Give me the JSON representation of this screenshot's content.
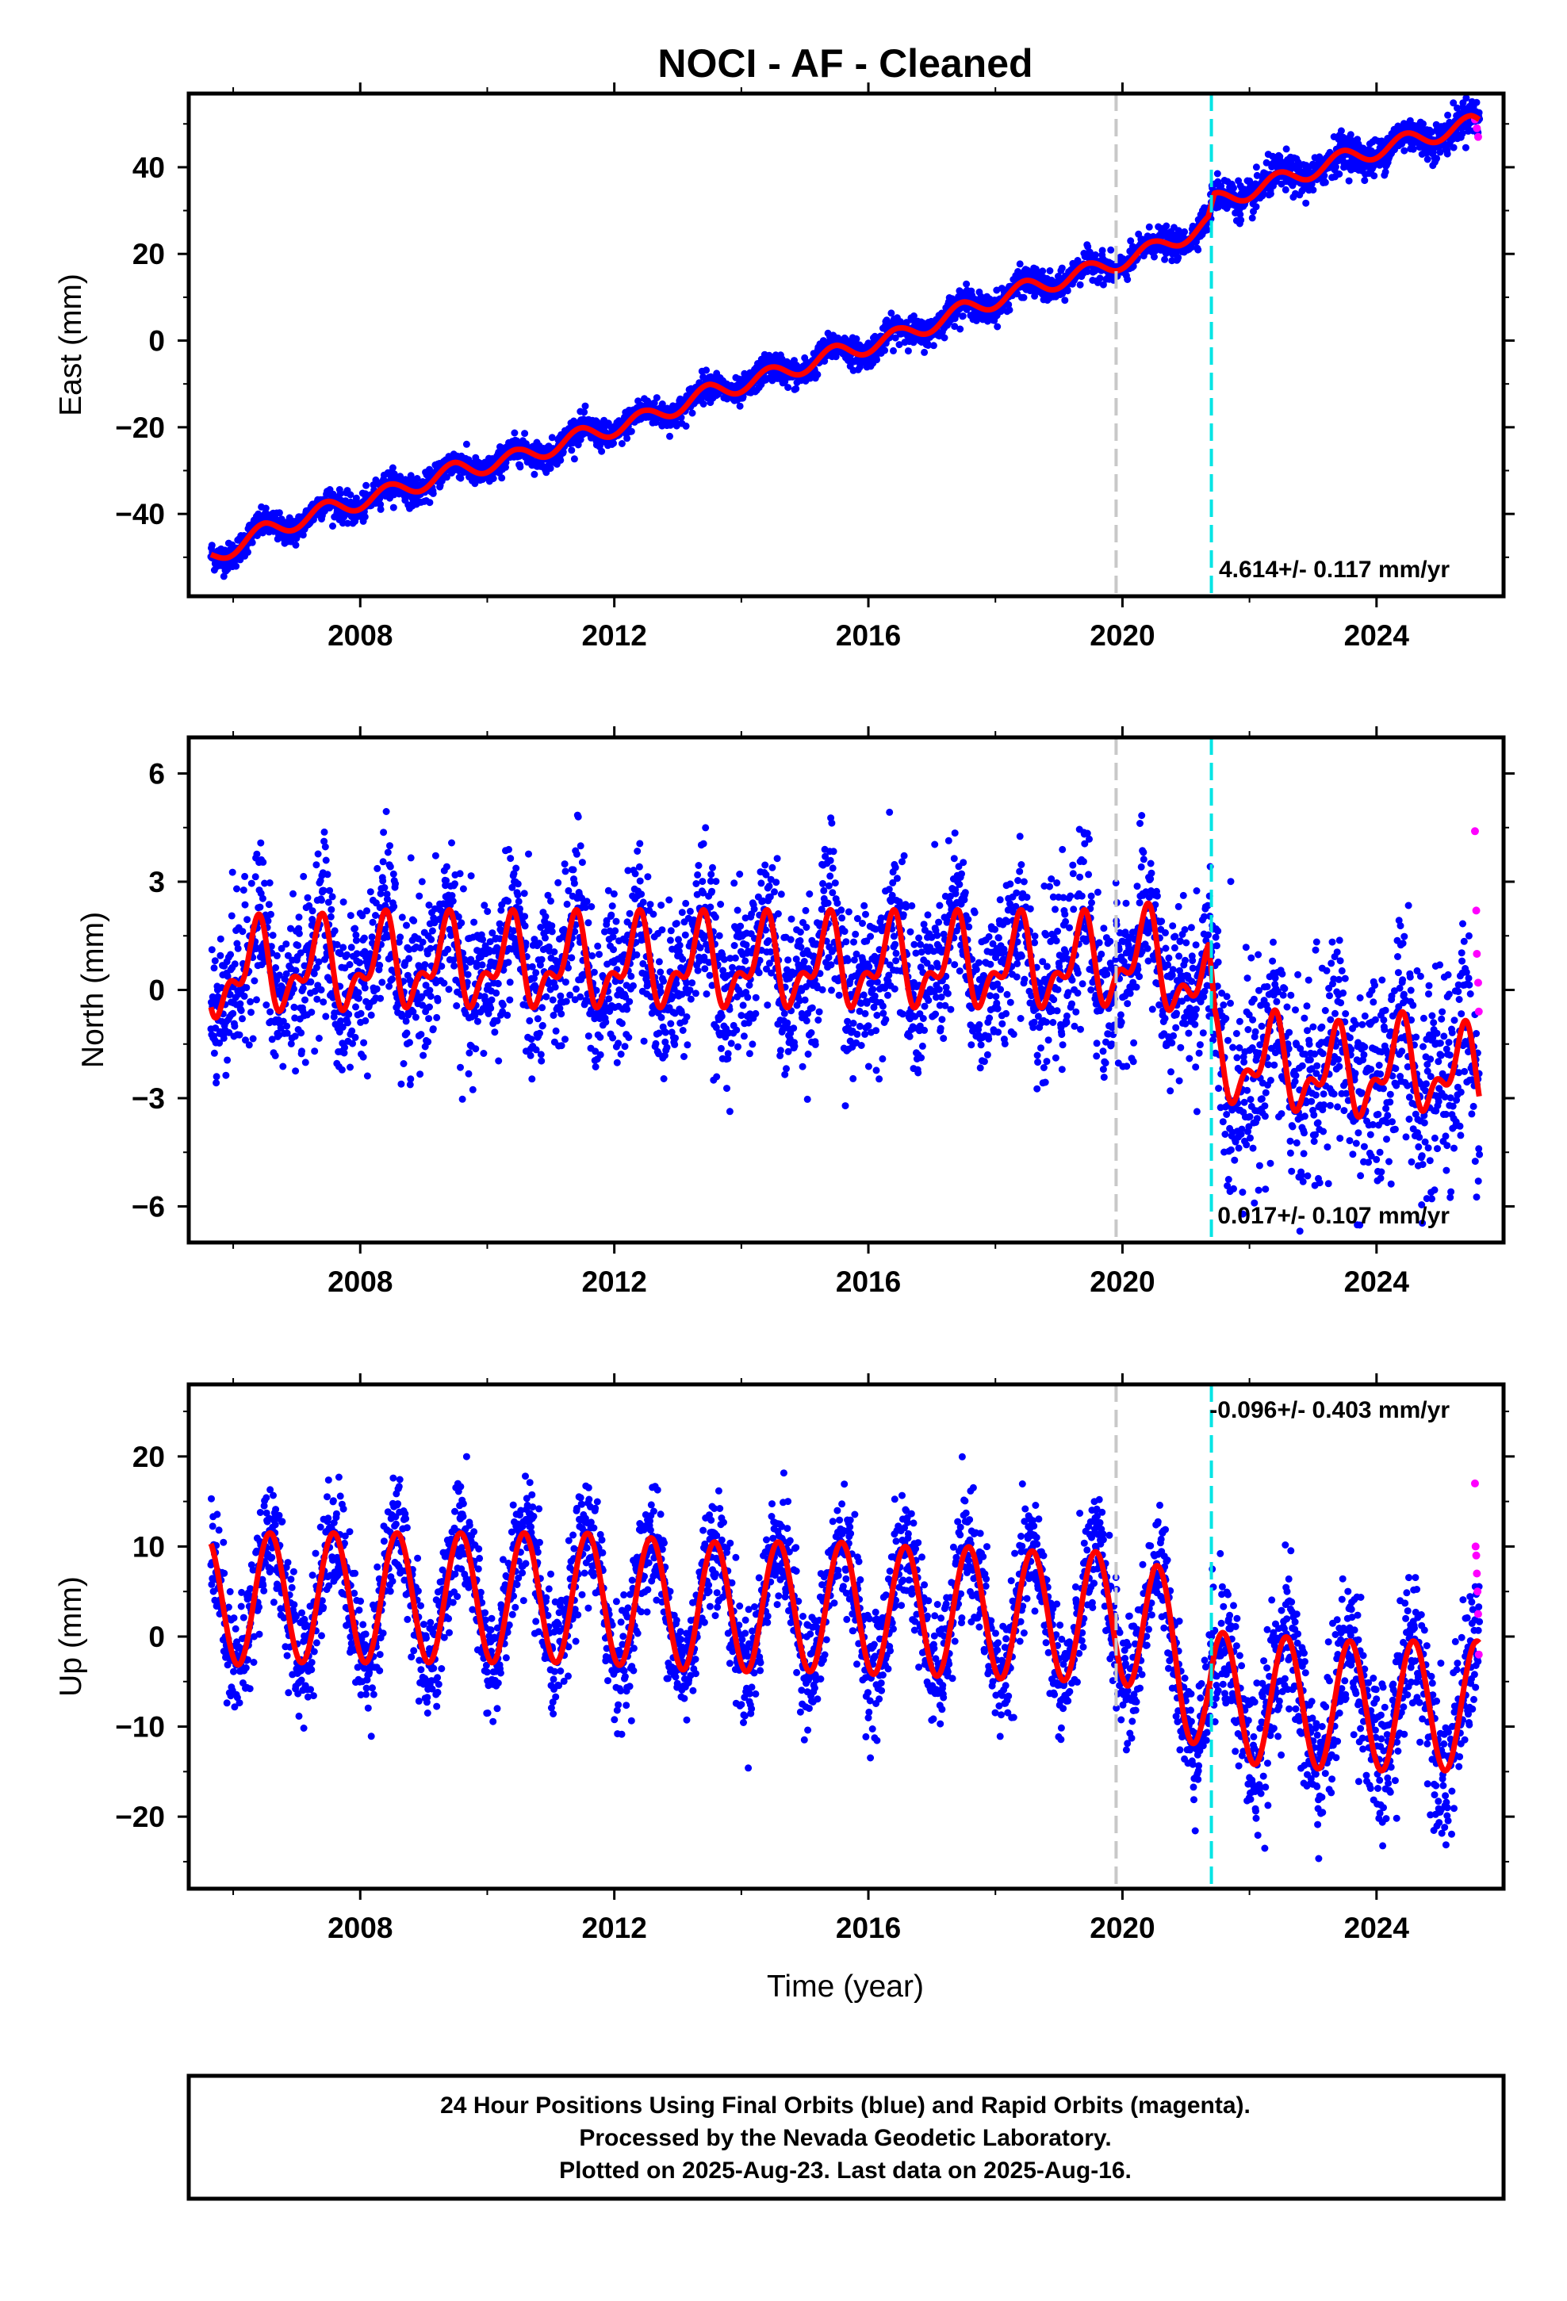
{
  "title": "NOCI  - AF - Cleaned",
  "colors": {
    "final_orbits": "#0000ff",
    "rapid_orbits": "#ff00ff",
    "model": "#ff0000",
    "equipment_change": "#c8c8c8",
    "earthquake": "#00e5e5"
  },
  "x_axis": {
    "label": "Time (year)",
    "range": [
      2005.3,
      2026.0
    ],
    "ticks": [
      2008,
      2012,
      2016,
      2020,
      2024
    ],
    "tick_labels": [
      "2008",
      "2012",
      "2016",
      "2020",
      "2024"
    ]
  },
  "vertical_lines": {
    "equipment_change_year": 2019.9,
    "earthquake_year": 2021.4
  },
  "chart_data": [
    {
      "type": "scatter",
      "component": "east",
      "ylabel": "East (mm)",
      "ylim": [
        -59,
        57
      ],
      "yticks": [
        -40,
        -20,
        0,
        20,
        40
      ],
      "ytick_labels": [
        "−40",
        "−20",
        "0",
        "20",
        "40"
      ],
      "rate_text": "4.614+/- 0.117 mm/yr",
      "rate_position": "bottom-right",
      "data_start": 2005.65,
      "data_end": 2025.62,
      "trend_rate_mm_per_yr": 4.614,
      "offset_at_earthquake_mm": 5.0,
      "scatter_mm": 1.6,
      "model": {
        "x": [
          2005.65,
          2006.5,
          2007.5,
          2008.5,
          2009.5,
          2010.5,
          2011.5,
          2012.5,
          2013.5,
          2014.5,
          2015.5,
          2016.5,
          2017.5,
          2018.5,
          2019.5,
          2020.5,
          2021.35,
          2021.45,
          2022.5,
          2023.5,
          2024.5,
          2025.5
        ],
        "y": [
          -48,
          -42,
          -37,
          -33,
          -28,
          -25,
          -20,
          -16,
          -10,
          -6,
          -1,
          3,
          9,
          14,
          18,
          23,
          29,
          34,
          39,
          44,
          48,
          52
        ]
      },
      "rapid": {
        "x": [
          2025.55,
          2025.58,
          2025.6
        ],
        "y": [
          51,
          49,
          47
        ]
      }
    },
    {
      "type": "scatter",
      "component": "north",
      "ylabel": "North (mm)",
      "ylim": [
        -7,
        7
      ],
      "yticks": [
        -6,
        -3,
        0,
        3,
        6
      ],
      "ytick_labels": [
        "−6",
        "−3",
        "0",
        "3",
        "6"
      ],
      "rate_text": "0.017+/- 0.107 mm/yr",
      "rate_position": "bottom-right",
      "data_start": 2005.65,
      "data_end": 2025.62,
      "trend_rate_mm_per_yr": 0.017,
      "offset_at_earthquake_mm": -2.1,
      "scatter_mm": 1.1,
      "model": {
        "x": [
          2005.65,
          2006.5,
          2007.5,
          2008.5,
          2009.5,
          2010.5,
          2011.5,
          2012.5,
          2013.5,
          2014.5,
          2015.5,
          2016.5,
          2017.5,
          2018.5,
          2019.5,
          2020.5,
          2021.35,
          2021.45,
          2022.5,
          2023.5,
          2024.5,
          2025.5
        ],
        "y": [
          1.3,
          1.5,
          1.5,
          1.6,
          1.6,
          1.6,
          1.6,
          1.6,
          1.6,
          1.6,
          1.6,
          1.6,
          1.6,
          1.6,
          1.6,
          1.8,
          0.8,
          -1.0,
          -1.2,
          -1.5,
          -1.2,
          -1.5
        ]
      },
      "rapid": {
        "x": [
          2025.55,
          2025.57,
          2025.58,
          2025.6,
          2025.61
        ],
        "y": [
          4.4,
          2.2,
          1.0,
          0.2,
          -0.6
        ]
      }
    },
    {
      "type": "scatter",
      "component": "up",
      "ylabel": "Up (mm)",
      "ylim": [
        -28,
        28
      ],
      "yticks": [
        -20,
        -10,
        0,
        10,
        20
      ],
      "ytick_labels": [
        "−20",
        "−10",
        "0",
        "10",
        "20"
      ],
      "rate_text": "-0.096+/- 0.403 mm/yr",
      "rate_position": "top-right",
      "data_start": 2005.65,
      "data_end": 2025.62,
      "trend_rate_mm_per_yr": -0.096,
      "offset_at_earthquake_mm": -6.0,
      "scatter_mm": 3.2,
      "model": {
        "x": [
          2005.65,
          2006.5,
          2007.5,
          2008.5,
          2009.5,
          2010.5,
          2011.5,
          2012.5,
          2013.5,
          2014.5,
          2015.5,
          2016.5,
          2017.5,
          2018.5,
          2019.5,
          2020.5,
          2021.35,
          2021.45,
          2022.5,
          2023.5,
          2024.5,
          2025.5
        ],
        "y": [
          11,
          11.5,
          11.5,
          11.5,
          11.5,
          11.5,
          11.5,
          11,
          10.5,
          10.5,
          10.5,
          10,
          10,
          9.5,
          9.5,
          8.5,
          0,
          0.5,
          0,
          -0.5,
          -0.5,
          -0.5
        ]
      },
      "rapid": {
        "x": [
          2025.55,
          2025.56,
          2025.57,
          2025.58,
          2025.59,
          2025.6,
          2025.61
        ],
        "y": [
          17,
          10,
          9,
          7,
          5,
          2.5,
          -2
        ]
      }
    }
  ],
  "footer": {
    "line1": "24 Hour Positions Using Final Orbits (blue) and Rapid Orbits (magenta).",
    "line2": "Processed by the Nevada Geodetic Laboratory.",
    "line3": "Plotted on 2025-Aug-23. Last data on 2025-Aug-16."
  }
}
